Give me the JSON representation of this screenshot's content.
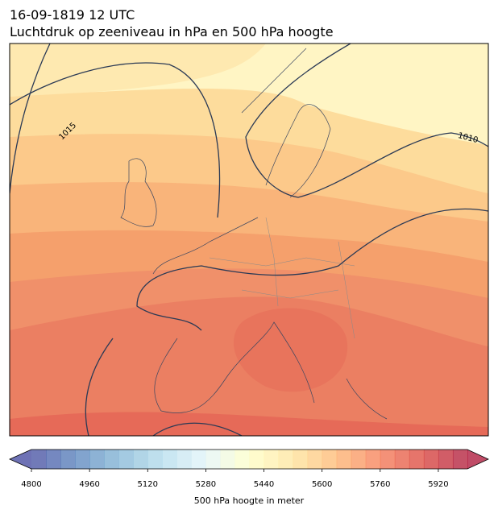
{
  "chart_data": {
    "type": "map",
    "title": "16-09-1819 12 UTC",
    "subtitle": "Luchtdruk op zeeniveau in hPa en 500 hPa hoogte",
    "isobar_labels": [
      1015,
      1010
    ],
    "colorbar": {
      "label": "500 hPa hoogte in meter",
      "lim": [
        4800,
        6000
      ],
      "ticks": [
        4800,
        4960,
        5120,
        5280,
        5440,
        5600,
        5760,
        5920
      ],
      "segments": 30,
      "cmap": [
        "#313695",
        "#4575b4",
        "#74add1",
        "#abd9e9",
        "#e0f3f8",
        "#ffffbf",
        "#fee090",
        "#fdae61",
        "#f46d43",
        "#d73027",
        "#a50026"
      ],
      "alpha": 0.7
    }
  }
}
